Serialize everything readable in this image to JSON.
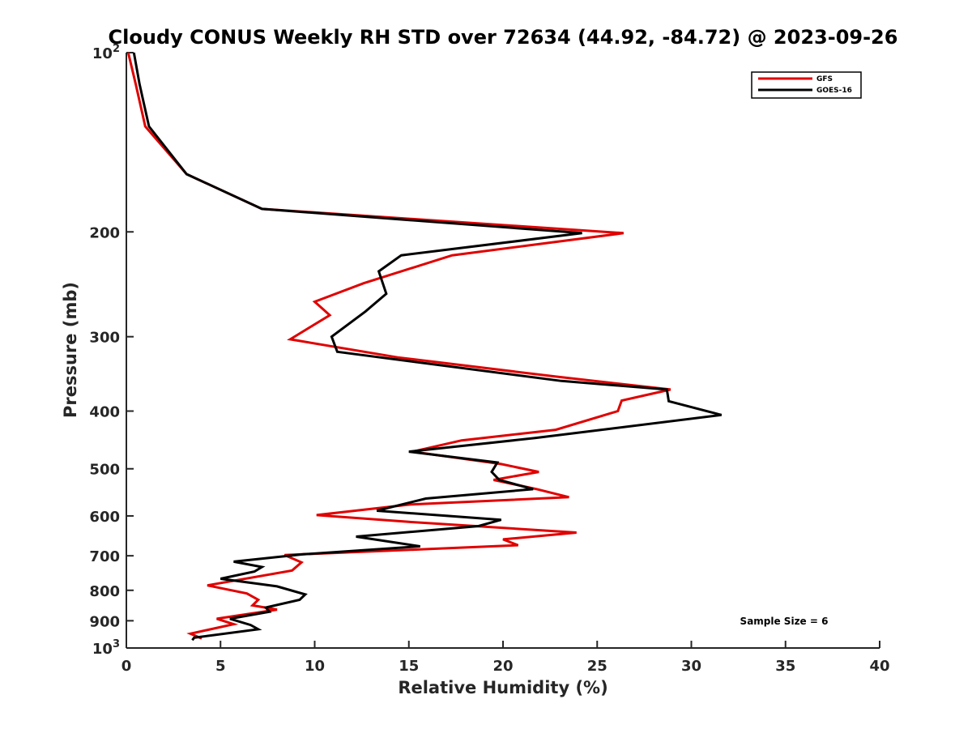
{
  "chart_data": {
    "type": "line",
    "title": "Cloudy CONUS Weekly RH STD over 72634 (44.92, -84.72) @ 2023-09-26",
    "xlabel": "Relative Humidity (%)",
    "ylabel": "Pressure (mb)",
    "xlim": [
      0,
      40
    ],
    "ylim": [
      100,
      1000
    ],
    "y_scale": "log",
    "y_reversed": true,
    "grid": false,
    "x_ticks": [
      0,
      5,
      10,
      15,
      20,
      25,
      30,
      35,
      40
    ],
    "x_tick_labels": [
      "0",
      "5",
      "10",
      "15",
      "20",
      "25",
      "30",
      "35",
      "40"
    ],
    "y_ticks": [
      100,
      200,
      300,
      400,
      500,
      600,
      700,
      800,
      900,
      1000
    ],
    "y_tick_labels": [
      {
        "base": "10",
        "exp": "2"
      },
      {
        "base": "200",
        "exp": ""
      },
      {
        "base": "300",
        "exp": ""
      },
      {
        "base": "400",
        "exp": ""
      },
      {
        "base": "500",
        "exp": ""
      },
      {
        "base": "600",
        "exp": ""
      },
      {
        "base": "700",
        "exp": ""
      },
      {
        "base": "800",
        "exp": ""
      },
      {
        "base": "900",
        "exp": ""
      },
      {
        "base": "10",
        "exp": "3"
      }
    ],
    "legend_position": "top-right",
    "annotation": "Sample Size = 6",
    "series": [
      {
        "name": "GFS",
        "color": "#e00000",
        "points": [
          [
            0.1,
            100
          ],
          [
            0.5,
            113
          ],
          [
            1.0,
            133
          ],
          [
            3.2,
            160
          ],
          [
            7.2,
            183
          ],
          [
            26.4,
            201
          ],
          [
            17.3,
            219
          ],
          [
            12.6,
            244
          ],
          [
            10.0,
            262
          ],
          [
            10.8,
            276
          ],
          [
            8.7,
            303
          ],
          [
            14.4,
            325
          ],
          [
            22.8,
            350
          ],
          [
            28.9,
            368
          ],
          [
            26.3,
            384
          ],
          [
            26.1,
            400
          ],
          [
            22.8,
            430
          ],
          [
            17.8,
            448
          ],
          [
            15.2,
            468
          ],
          [
            19.9,
            491
          ],
          [
            21.9,
            506
          ],
          [
            19.5,
            522
          ],
          [
            21.8,
            541
          ],
          [
            23.5,
            558
          ],
          [
            15.1,
            574
          ],
          [
            10.1,
            598
          ],
          [
            15.0,
            614
          ],
          [
            23.9,
            640
          ],
          [
            20.0,
            657
          ],
          [
            20.8,
            672
          ],
          [
            16.1,
            682
          ],
          [
            8.4,
            698
          ],
          [
            9.3,
            718
          ],
          [
            8.8,
            741
          ],
          [
            4.3,
            785
          ],
          [
            6.4,
            810
          ],
          [
            7.0,
            830
          ],
          [
            6.7,
            848
          ],
          [
            8.0,
            862
          ],
          [
            4.8,
            893
          ],
          [
            5.7,
            912
          ],
          [
            3.4,
            946
          ],
          [
            4.0,
            964
          ]
        ]
      },
      {
        "name": "GOES-16",
        "color": "#000000",
        "points": [
          [
            0.4,
            100
          ],
          [
            0.7,
            113
          ],
          [
            1.2,
            133
          ],
          [
            3.2,
            160
          ],
          [
            7.2,
            183
          ],
          [
            24.2,
            201
          ],
          [
            14.6,
            219
          ],
          [
            13.4,
            233
          ],
          [
            13.8,
            254
          ],
          [
            12.7,
            272
          ],
          [
            10.9,
            300
          ],
          [
            11.2,
            318
          ],
          [
            23.1,
            356
          ],
          [
            28.7,
            368
          ],
          [
            28.8,
            385
          ],
          [
            31.6,
            406
          ],
          [
            25.5,
            429
          ],
          [
            21.7,
            444
          ],
          [
            15.0,
            468
          ],
          [
            19.7,
            488
          ],
          [
            19.4,
            506
          ],
          [
            19.8,
            522
          ],
          [
            21.6,
            541
          ],
          [
            15.9,
            561
          ],
          [
            13.3,
            588
          ],
          [
            19.9,
            609
          ],
          [
            18.7,
            624
          ],
          [
            12.2,
            650
          ],
          [
            15.6,
            675
          ],
          [
            9.4,
            696
          ],
          [
            5.7,
            716
          ],
          [
            7.2,
            731
          ],
          [
            6.8,
            744
          ],
          [
            5.0,
            765
          ],
          [
            8.0,
            788
          ],
          [
            9.5,
            813
          ],
          [
            9.2,
            830
          ],
          [
            7.4,
            855
          ],
          [
            7.6,
            869
          ],
          [
            5.5,
            893
          ],
          [
            6.6,
            915
          ],
          [
            7.0,
            930
          ],
          [
            3.6,
            961
          ],
          [
            3.5,
            970
          ]
        ]
      }
    ]
  }
}
